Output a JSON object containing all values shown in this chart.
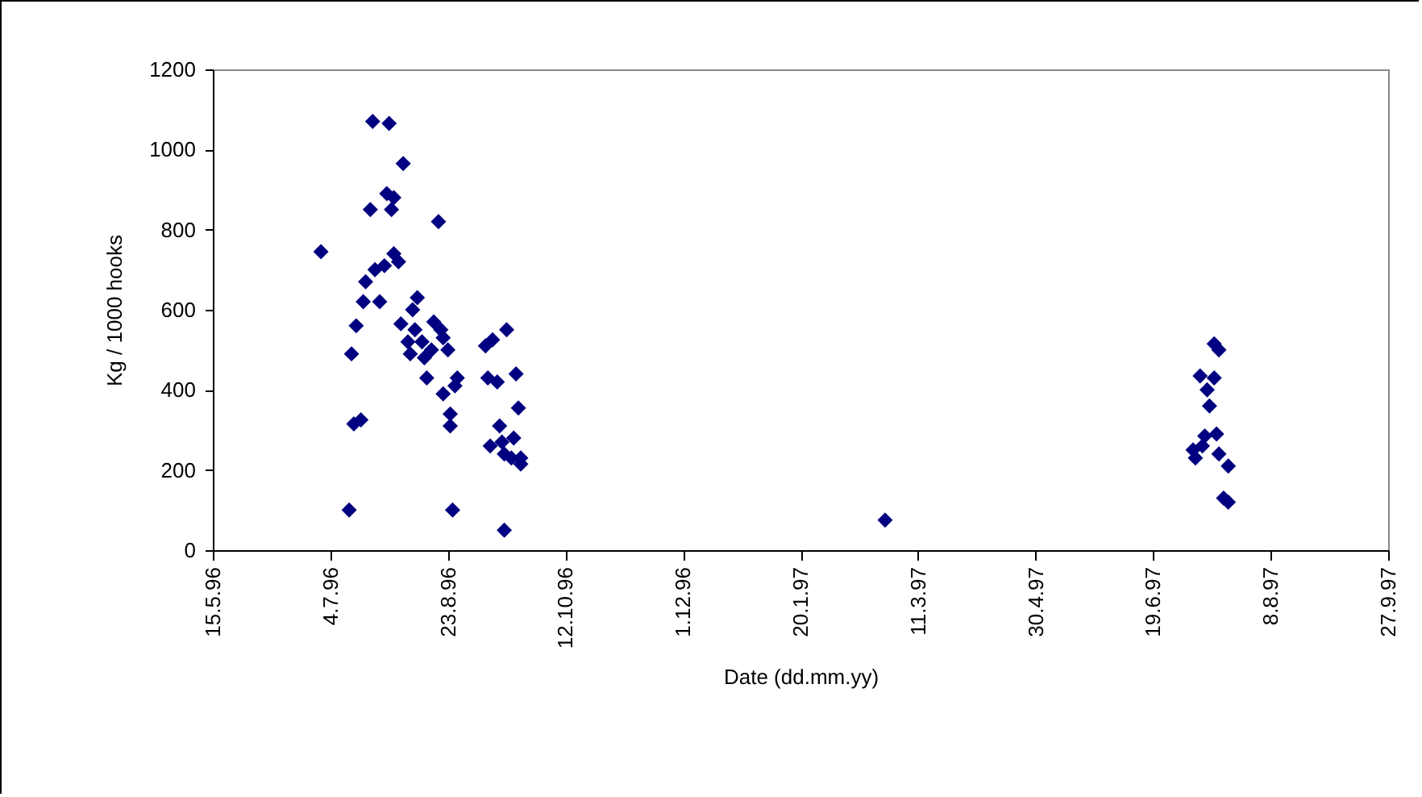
{
  "chart_data": {
    "type": "scatter",
    "xlabel": "Date (dd.mm.yy)",
    "ylabel": "Kg / 1000 hooks",
    "marker": "diamond",
    "grid": false,
    "xlim": [
      "1996-05-15",
      "1997-09-27"
    ],
    "xticks": [
      {
        "value": "1996-05-15",
        "label": "15.5.96"
      },
      {
        "value": "1996-07-04",
        "label": "4.7.96"
      },
      {
        "value": "1996-08-23",
        "label": "23.8.96"
      },
      {
        "value": "1996-10-12",
        "label": "12.10.96"
      },
      {
        "value": "1996-12-01",
        "label": "1.12.96"
      },
      {
        "value": "1997-01-20",
        "label": "20.1.97"
      },
      {
        "value": "1997-03-11",
        "label": "11.3.97"
      },
      {
        "value": "1997-04-30",
        "label": "30.4.97"
      },
      {
        "value": "1997-06-19",
        "label": "19.6.97"
      },
      {
        "value": "1997-08-08",
        "label": "8.8.97"
      },
      {
        "value": "1997-09-27",
        "label": "27.9.97"
      }
    ],
    "ylim": [
      0,
      1200
    ],
    "yticks": [
      0,
      200,
      400,
      600,
      800,
      1000,
      1200
    ],
    "x": [
      "1996-06-30",
      "1996-07-12",
      "1996-07-13",
      "1996-07-14",
      "1996-07-15",
      "1996-07-17",
      "1996-07-18",
      "1996-07-19",
      "1996-07-21",
      "1996-07-22",
      "1996-07-23",
      "1996-07-25",
      "1996-07-27",
      "1996-07-28",
      "1996-07-29",
      "1996-07-30",
      "1996-07-31",
      "1996-07-31",
      "1996-08-02",
      "1996-08-03",
      "1996-08-04",
      "1996-08-06",
      "1996-08-07",
      "1996-08-08",
      "1996-08-09",
      "1996-08-10",
      "1996-08-12",
      "1996-08-13",
      "1996-08-14",
      "1996-08-16",
      "1996-08-17",
      "1996-08-19",
      "1996-08-20",
      "1996-08-21",
      "1996-08-21",
      "1996-08-23",
      "1996-08-24",
      "1996-08-24",
      "1996-08-25",
      "1996-08-26",
      "1996-08-27",
      "1996-09-08",
      "1996-09-09",
      "1996-09-10",
      "1996-09-11",
      "1996-09-13",
      "1996-09-14",
      "1996-09-15",
      "1996-09-16",
      "1996-09-16",
      "1996-09-17",
      "1996-09-19",
      "1996-09-20",
      "1996-09-21",
      "1996-09-22",
      "1996-09-23",
      "1996-09-23",
      "1997-02-25",
      "1997-07-06",
      "1997-07-07",
      "1997-07-09",
      "1997-07-10",
      "1997-07-11",
      "1997-07-12",
      "1997-07-13",
      "1997-07-15",
      "1997-07-15",
      "1997-07-16",
      "1997-07-17",
      "1997-07-17",
      "1997-07-19",
      "1997-07-21",
      "1997-07-21"
    ],
    "series": [
      {
        "color": "#000080",
        "values": [
          745,
          100,
          490,
          315,
          560,
          325,
          620,
          670,
          850,
          1070,
          700,
          620,
          710,
          890,
          1065,
          850,
          880,
          740,
          720,
          565,
          965,
          520,
          490,
          600,
          550,
          630,
          520,
          480,
          430,
          500,
          570,
          820,
          550,
          530,
          390,
          500,
          340,
          310,
          100,
          410,
          430,
          510,
          430,
          260,
          525,
          420,
          310,
          270,
          240,
          50,
          550,
          230,
          280,
          440,
          355,
          230,
          215,
          75,
          250,
          230,
          435,
          260,
          285,
          400,
          360,
          515,
          430,
          290,
          500,
          240,
          130,
          210,
          120
        ]
      }
    ]
  }
}
